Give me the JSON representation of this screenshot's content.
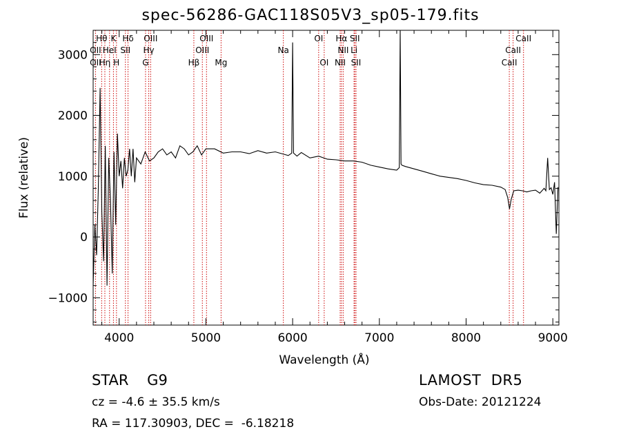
{
  "title": "spec-56286-GAC118S05V3_sp05-179.fits",
  "info": {
    "classification": "STAR    G9",
    "survey": "LAMOST  DR5",
    "redshift": "cz = -4.6 ± 35.5 km/s",
    "obs_date": "Obs-Date: 20121224",
    "coords": "RA = 117.30903, DEC =  -6.18218"
  },
  "chart_data": {
    "type": "line",
    "title": "spec-56286-GAC118S05V3_sp05-179.fits",
    "xlabel": "Wavelength (Å)",
    "ylabel": "Flux (relative)",
    "xlim": [
      3700,
      9070
    ],
    "ylim": [
      -1450,
      3400
    ],
    "xticks": [
      4000,
      5000,
      6000,
      7000,
      8000,
      9000
    ],
    "yticks": [
      -1000,
      0,
      1000,
      2000,
      3000
    ],
    "grid": false,
    "series": [
      {
        "x": [
          3700,
          3720,
          3740,
          3760,
          3780,
          3800,
          3820,
          3840,
          3860,
          3880,
          3900,
          3920,
          3940,
          3960,
          3980,
          4000,
          4020,
          4040,
          4060,
          4080,
          4100,
          4120,
          4140,
          4160,
          4180,
          4200,
          4250,
          4300,
          4350,
          4400,
          4450,
          4500,
          4550,
          4600,
          4650,
          4700,
          4750,
          4800,
          4850,
          4900,
          4950,
          5000,
          5100,
          5200,
          5300,
          5400,
          5500,
          5600,
          5700,
          5800,
          5900,
          5950,
          5990,
          6000,
          6010,
          6050,
          6100,
          6200,
          6300,
          6400,
          6500,
          6600,
          6700,
          6800,
          6900,
          7000,
          7100,
          7200,
          7230,
          7240,
          7250,
          7260,
          7300,
          7400,
          7500,
          7600,
          7700,
          7800,
          7900,
          8000,
          8100,
          8200,
          8300,
          8400,
          8450,
          8480,
          8500,
          8520,
          8550,
          8600,
          8650,
          8700,
          8750,
          8800,
          8850,
          8900,
          8920,
          8940,
          8960,
          8980,
          9000,
          9020,
          9040,
          9060
        ],
        "y": [
          -800,
          200,
          -300,
          800,
          2450,
          400,
          -400,
          1500,
          -800,
          1300,
          600,
          -600,
          1400,
          200,
          1700,
          1000,
          1250,
          800,
          1300,
          1000,
          1100,
          1450,
          1000,
          1450,
          900,
          1300,
          1200,
          1400,
          1250,
          1300,
          1400,
          1450,
          1350,
          1400,
          1300,
          1500,
          1450,
          1350,
          1400,
          1500,
          1350,
          1450,
          1450,
          1380,
          1400,
          1400,
          1370,
          1420,
          1380,
          1400,
          1360,
          1340,
          1380,
          3200,
          1380,
          1330,
          1390,
          1300,
          1330,
          1280,
          1270,
          1250,
          1250,
          1230,
          1180,
          1150,
          1120,
          1100,
          1140,
          3400,
          1200,
          1180,
          1160,
          1120,
          1080,
          1040,
          1000,
          980,
          960,
          930,
          890,
          860,
          850,
          820,
          780,
          650,
          460,
          620,
          760,
          770,
          760,
          740,
          760,
          770,
          720,
          800,
          760,
          1300,
          780,
          810,
          700,
          900,
          50,
          820
        ]
      }
    ],
    "lines": [
      {
        "name": "Hθ",
        "x": 3798,
        "row": 0
      },
      {
        "name": "K",
        "x": 3934,
        "row": 0
      },
      {
        "name": "Hδ",
        "x": 4102,
        "row": 0
      },
      {
        "name": "OIII",
        "x": 4363,
        "row": 0
      },
      {
        "name": "OIII",
        "x": 5007,
        "row": 0
      },
      {
        "name": "OI",
        "x": 6300,
        "row": 0
      },
      {
        "name": "Hα",
        "x": 6563,
        "row": 0
      },
      {
        "name": "SII",
        "x": 6717,
        "row": 0
      },
      {
        "name": "CaII",
        "x": 8662,
        "row": 0
      },
      {
        "name": "OII",
        "x": 3727,
        "row": 1
      },
      {
        "name": "HeI",
        "x": 3889,
        "row": 1
      },
      {
        "name": "SII",
        "x": 4072,
        "row": 1
      },
      {
        "name": "Hγ",
        "x": 4341,
        "row": 1
      },
      {
        "name": "OIII",
        "x": 4959,
        "row": 1
      },
      {
        "name": "NII",
        "x": 6583,
        "row": 1
      },
      {
        "name": "Li",
        "x": 6708,
        "row": 1
      },
      {
        "name": "CaII",
        "x": 8542,
        "row": 1
      },
      {
        "name": "OII",
        "x": 3727,
        "row": 2
      },
      {
        "name": "Hη",
        "x": 3835,
        "row": 2
      },
      {
        "name": "H",
        "x": 3969,
        "row": 2
      },
      {
        "name": "G",
        "x": 4304,
        "row": 2
      },
      {
        "name": "Hβ",
        "x": 4861,
        "row": 2
      },
      {
        "name": "Mg",
        "x": 5175,
        "row": 2
      },
      {
        "name": "Na",
        "x": 5893,
        "row": 1
      },
      {
        "name": "OI",
        "x": 6364,
        "row": 2
      },
      {
        "name": "NII",
        "x": 6548,
        "row": 2
      },
      {
        "name": "SII",
        "x": 6731,
        "row": 2
      },
      {
        "name": "CaII",
        "x": 8498,
        "row": 2
      }
    ],
    "line_color": "#cc0000",
    "data_color": "#000000"
  }
}
